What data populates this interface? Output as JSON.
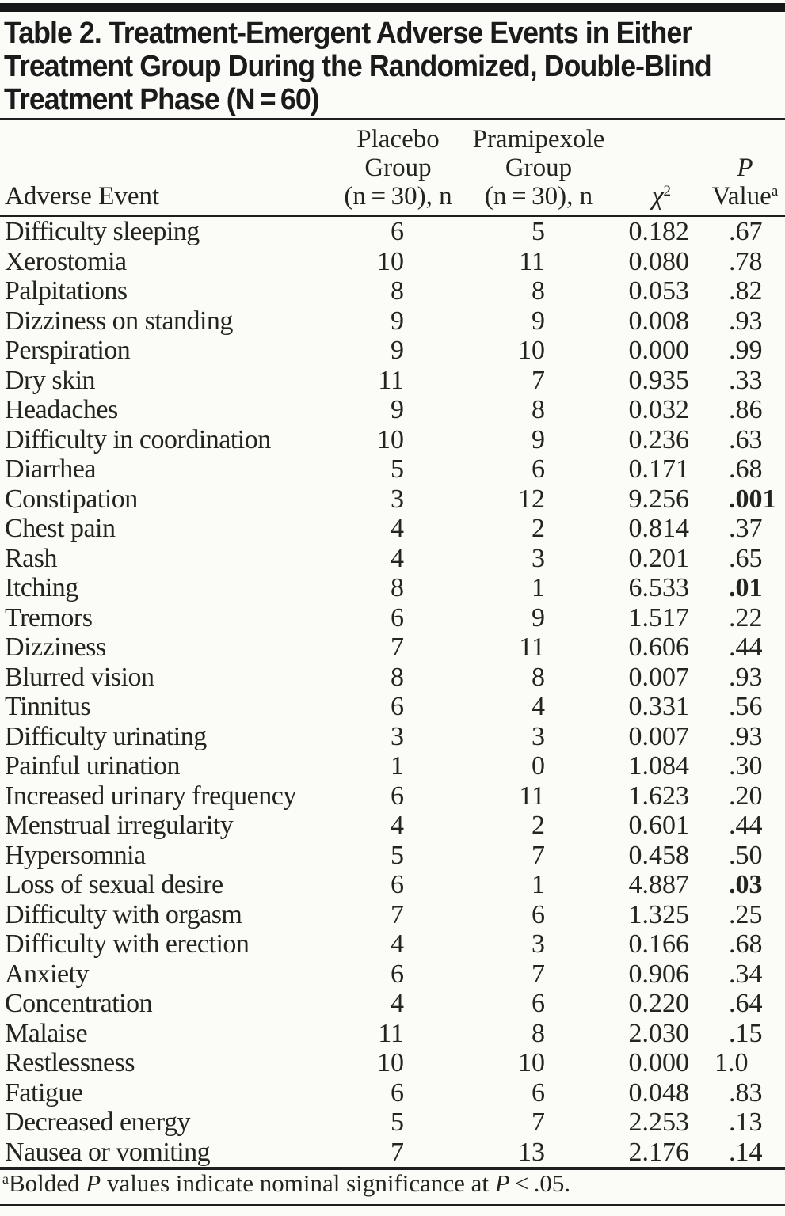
{
  "title_lines": [
    "Table 2. Treatment-Emergent Adverse Events in Either",
    "Treatment Group During the Randomized, Double-Blind",
    "Treatment Phase (N = 60)"
  ],
  "columns": {
    "event": {
      "label": "Adverse Event"
    },
    "placebo": {
      "line1": "Placebo",
      "line2": "Group",
      "line3": "(n = 30), n"
    },
    "pramipexole": {
      "line1": "Pramipexole",
      "line2": "Group",
      "line3": "(n = 30), n"
    },
    "chi_square": {
      "symbol": "χ",
      "sup": "2"
    },
    "p_value": {
      "line1": "P",
      "line2": "Value",
      "sup": "a"
    }
  },
  "rows": [
    {
      "event": "Difficulty sleeping",
      "placebo": "6",
      "pramipexole": "5",
      "chi2": "0.182",
      "p": ".67",
      "sig": false
    },
    {
      "event": "Xerostomia",
      "placebo": "10",
      "pramipexole": "11",
      "chi2": "0.080",
      "p": ".78",
      "sig": false
    },
    {
      "event": "Palpitations",
      "placebo": "8",
      "pramipexole": "8",
      "chi2": "0.053",
      "p": ".82",
      "sig": false
    },
    {
      "event": "Dizziness on standing",
      "placebo": "9",
      "pramipexole": "9",
      "chi2": "0.008",
      "p": ".93",
      "sig": false
    },
    {
      "event": "Perspiration",
      "placebo": "9",
      "pramipexole": "10",
      "chi2": "0.000",
      "p": ".99",
      "sig": false
    },
    {
      "event": "Dry skin",
      "placebo": "11",
      "pramipexole": "7",
      "chi2": "0.935",
      "p": ".33",
      "sig": false
    },
    {
      "event": "Headaches",
      "placebo": "9",
      "pramipexole": "8",
      "chi2": "0.032",
      "p": ".86",
      "sig": false
    },
    {
      "event": "Difficulty in coordination",
      "placebo": "10",
      "pramipexole": "9",
      "chi2": "0.236",
      "p": ".63",
      "sig": false
    },
    {
      "event": "Diarrhea",
      "placebo": "5",
      "pramipexole": "6",
      "chi2": "0.171",
      "p": ".68",
      "sig": false
    },
    {
      "event": "Constipation",
      "placebo": "3",
      "pramipexole": "12",
      "chi2": "9.256",
      "p": ".001",
      "sig": true
    },
    {
      "event": "Chest pain",
      "placebo": "4",
      "pramipexole": "2",
      "chi2": "0.814",
      "p": ".37",
      "sig": false
    },
    {
      "event": "Rash",
      "placebo": "4",
      "pramipexole": "3",
      "chi2": "0.201",
      "p": ".65",
      "sig": false
    },
    {
      "event": "Itching",
      "placebo": "8",
      "pramipexole": "1",
      "chi2": "6.533",
      "p": ".01",
      "sig": true
    },
    {
      "event": "Tremors",
      "placebo": "6",
      "pramipexole": "9",
      "chi2": "1.517",
      "p": ".22",
      "sig": false
    },
    {
      "event": "Dizziness",
      "placebo": "7",
      "pramipexole": "11",
      "chi2": "0.606",
      "p": ".44",
      "sig": false
    },
    {
      "event": "Blurred vision",
      "placebo": "8",
      "pramipexole": "8",
      "chi2": "0.007",
      "p": ".93",
      "sig": false
    },
    {
      "event": "Tinnitus",
      "placebo": "6",
      "pramipexole": "4",
      "chi2": "0.331",
      "p": ".56",
      "sig": false
    },
    {
      "event": "Difficulty urinating",
      "placebo": "3",
      "pramipexole": "3",
      "chi2": "0.007",
      "p": ".93",
      "sig": false
    },
    {
      "event": "Painful urination",
      "placebo": "1",
      "pramipexole": "0",
      "chi2": "1.084",
      "p": ".30",
      "sig": false
    },
    {
      "event": "Increased urinary frequency",
      "placebo": "6",
      "pramipexole": "11",
      "chi2": "1.623",
      "p": ".20",
      "sig": false
    },
    {
      "event": "Menstrual irregularity",
      "placebo": "4",
      "pramipexole": "2",
      "chi2": "0.601",
      "p": ".44",
      "sig": false
    },
    {
      "event": "Hypersomnia",
      "placebo": "5",
      "pramipexole": "7",
      "chi2": "0.458",
      "p": ".50",
      "sig": false
    },
    {
      "event": "Loss of sexual desire",
      "placebo": "6",
      "pramipexole": "1",
      "chi2": "4.887",
      "p": ".03",
      "sig": true
    },
    {
      "event": "Difficulty with orgasm",
      "placebo": "7",
      "pramipexole": "6",
      "chi2": "1.325",
      "p": ".25",
      "sig": false
    },
    {
      "event": "Difficulty with erection",
      "placebo": "4",
      "pramipexole": "3",
      "chi2": "0.166",
      "p": ".68",
      "sig": false
    },
    {
      "event": "Anxiety",
      "placebo": "6",
      "pramipexole": "7",
      "chi2": "0.906",
      "p": ".34",
      "sig": false
    },
    {
      "event": "Concentration",
      "placebo": "4",
      "pramipexole": "6",
      "chi2": "0.220",
      "p": ".64",
      "sig": false
    },
    {
      "event": "Malaise",
      "placebo": "11",
      "pramipexole": "8",
      "chi2": "2.030",
      "p": ".15",
      "sig": false
    },
    {
      "event": "Restlessness",
      "placebo": "10",
      "pramipexole": "10",
      "chi2": "0.000",
      "p": "1.0",
      "sig": false
    },
    {
      "event": "Fatigue",
      "placebo": "6",
      "pramipexole": "6",
      "chi2": "0.048",
      "p": ".83",
      "sig": false
    },
    {
      "event": "Decreased energy",
      "placebo": "5",
      "pramipexole": "7",
      "chi2": "2.253",
      "p": ".13",
      "sig": false
    },
    {
      "event": "Nausea or vomiting",
      "placebo": "7",
      "pramipexole": "13",
      "chi2": "2.176",
      "p": ".14",
      "sig": false
    }
  ],
  "footnote": {
    "marker": "a",
    "part1": "Bolded ",
    "italic1": "P",
    "part2": " values indicate nominal significance at ",
    "italic2": "P",
    "part3": " < .05."
  }
}
